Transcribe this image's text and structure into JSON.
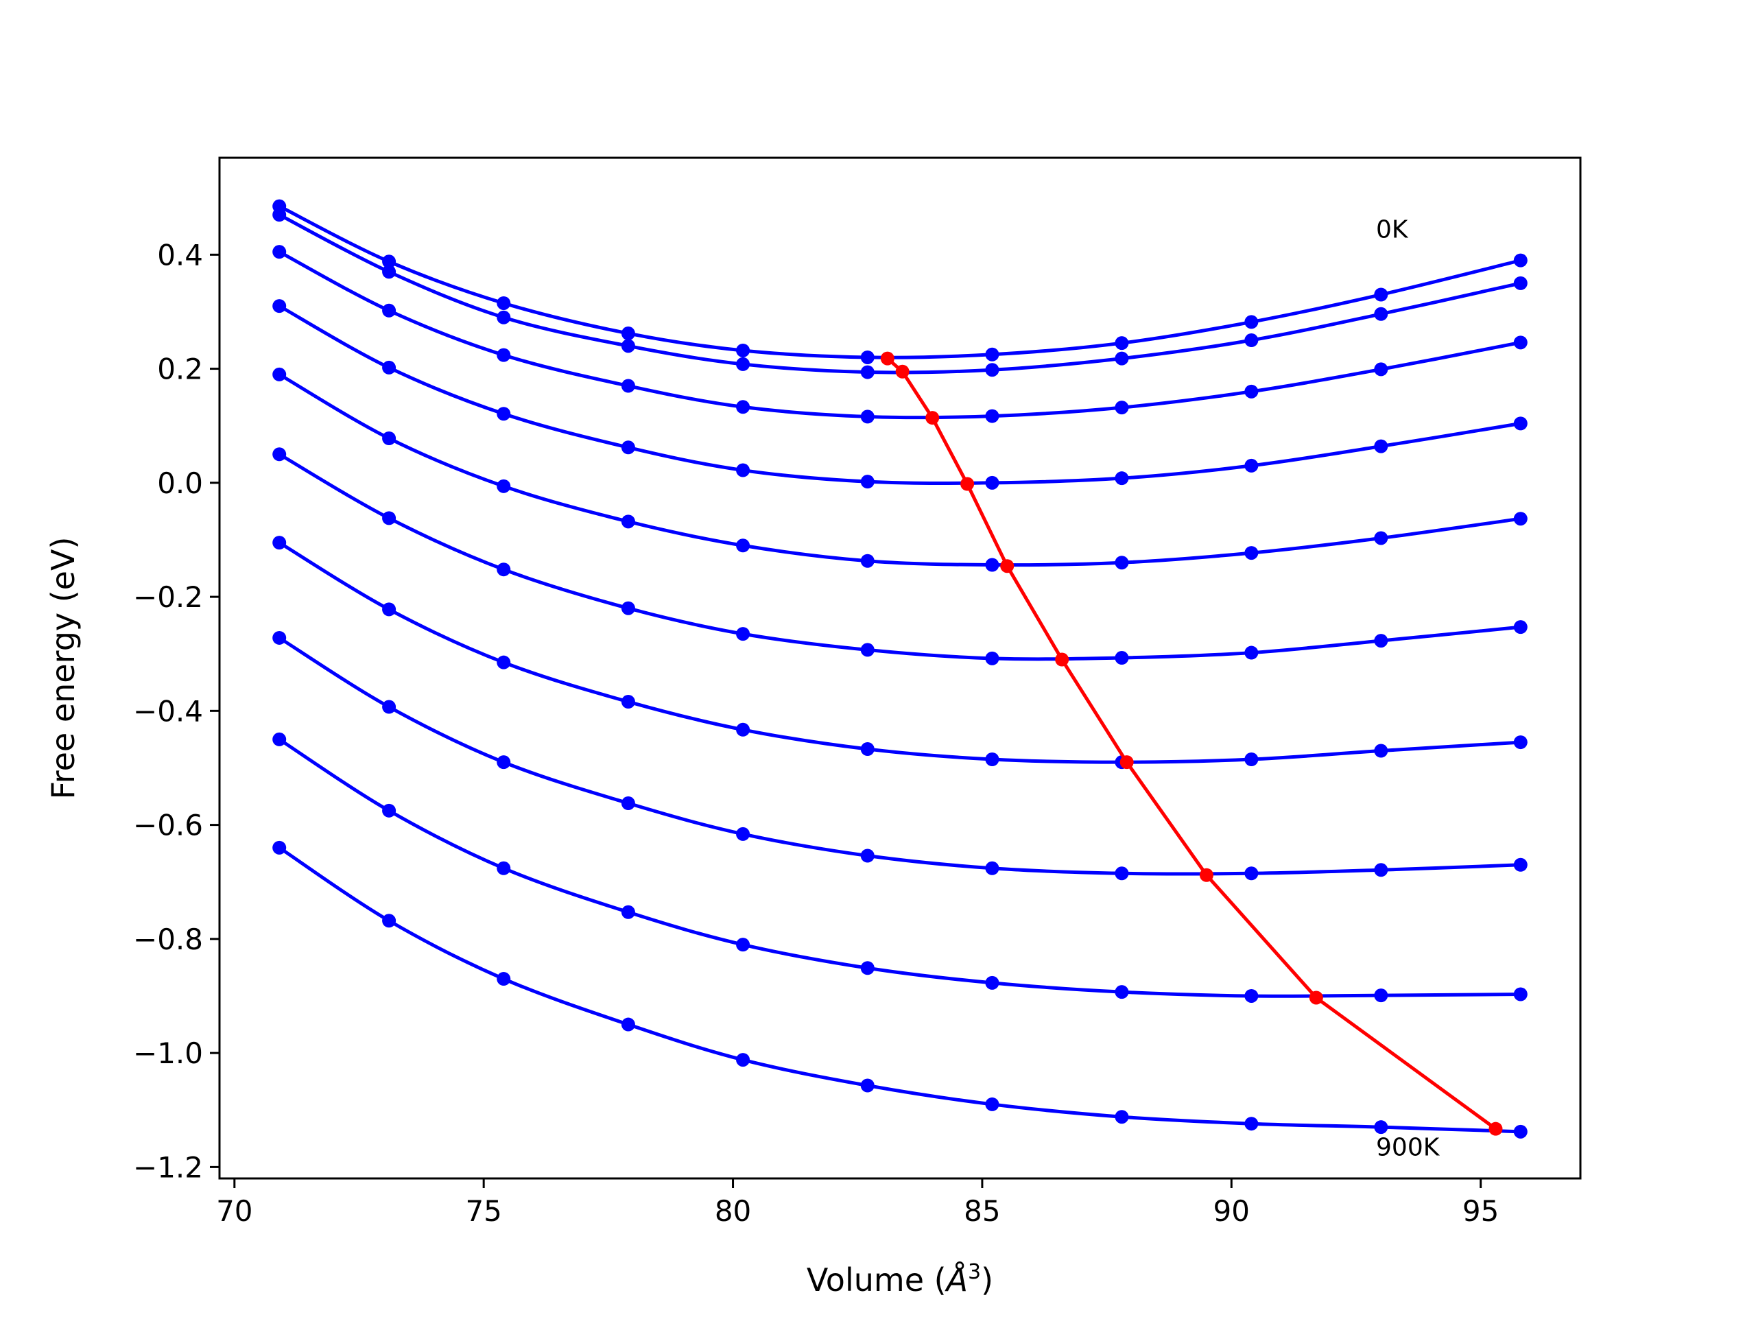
{
  "chart_data": {
    "type": "line",
    "xlabel": "Volume (",
    "xlabel_symbol": "Å",
    "xlabel_sup": "3",
    "xlabel_close": ")",
    "ylabel": "Free energy (eV)",
    "xlim": [
      69.7,
      97.0
    ],
    "ylim": [
      -1.22,
      0.57
    ],
    "xticks": [
      70,
      75,
      80,
      85,
      90,
      95
    ],
    "xtick_labels": [
      "70",
      "75",
      "80",
      "85",
      "90",
      "95"
    ],
    "yticks": [
      0.4,
      0.2,
      0.0,
      -0.2,
      -0.4,
      -0.6,
      -0.8,
      -1.0,
      -1.2
    ],
    "ytick_labels": [
      "0.4",
      "0.2",
      "0.0",
      "−0.2",
      "−0.4",
      "−0.6",
      "−0.8",
      "−1.0",
      "−1.2"
    ],
    "grid": false,
    "annotations": [
      {
        "text": "0K",
        "x": 92.9,
        "y": 0.43
      },
      {
        "text": "900K",
        "x": 92.9,
        "y": -1.18
      }
    ],
    "colors": {
      "isotherm": "#0000ff",
      "minimum": "#ff0000"
    },
    "x": [
      70.9,
      73.1,
      75.4,
      77.9,
      80.2,
      82.7,
      85.2,
      87.8,
      90.4,
      93.0,
      95.8
    ],
    "series": [
      {
        "values": [
          0.485,
          0.388,
          0.315,
          0.262,
          0.232,
          0.22,
          0.225,
          0.245,
          0.282,
          0.33,
          0.39
        ]
      },
      {
        "values": [
          0.47,
          0.37,
          0.29,
          0.24,
          0.208,
          0.194,
          0.198,
          0.218,
          0.25,
          0.296,
          0.35
        ]
      },
      {
        "values": [
          0.405,
          0.302,
          0.224,
          0.17,
          0.133,
          0.116,
          0.117,
          0.132,
          0.16,
          0.199,
          0.246
        ]
      },
      {
        "values": [
          0.31,
          0.202,
          0.121,
          0.062,
          0.022,
          0.002,
          0.0,
          0.008,
          0.03,
          0.064,
          0.104
        ]
      },
      {
        "values": [
          0.19,
          0.078,
          -0.006,
          -0.068,
          -0.11,
          -0.137,
          -0.144,
          -0.14,
          -0.123,
          -0.097,
          -0.063
        ]
      },
      {
        "values": [
          0.05,
          -0.062,
          -0.152,
          -0.22,
          -0.265,
          -0.293,
          -0.308,
          -0.307,
          -0.298,
          -0.277,
          -0.253
        ]
      },
      {
        "values": [
          -0.105,
          -0.222,
          -0.315,
          -0.384,
          -0.433,
          -0.467,
          -0.485,
          -0.49,
          -0.485,
          -0.47,
          -0.455
        ]
      },
      {
        "values": [
          -0.272,
          -0.393,
          -0.49,
          -0.562,
          -0.616,
          -0.654,
          -0.676,
          -0.685,
          -0.685,
          -0.679,
          -0.67
        ]
      },
      {
        "values": [
          -0.45,
          -0.575,
          -0.676,
          -0.753,
          -0.81,
          -0.851,
          -0.877,
          -0.893,
          -0.9,
          -0.899,
          -0.897
        ]
      },
      {
        "values": [
          -0.64,
          -0.768,
          -0.87,
          -0.95,
          -1.012,
          -1.057,
          -1.09,
          -1.112,
          -1.124,
          -1.13,
          -1.138
        ]
      }
    ],
    "minimum_curve": {
      "x": [
        83.1,
        83.4,
        84.0,
        84.7,
        85.5,
        86.6,
        87.9,
        89.5,
        91.7,
        95.3
      ],
      "y": [
        0.218,
        0.195,
        0.114,
        -0.002,
        -0.146,
        -0.31,
        -0.49,
        -0.688,
        -0.903,
        -1.133
      ]
    }
  }
}
